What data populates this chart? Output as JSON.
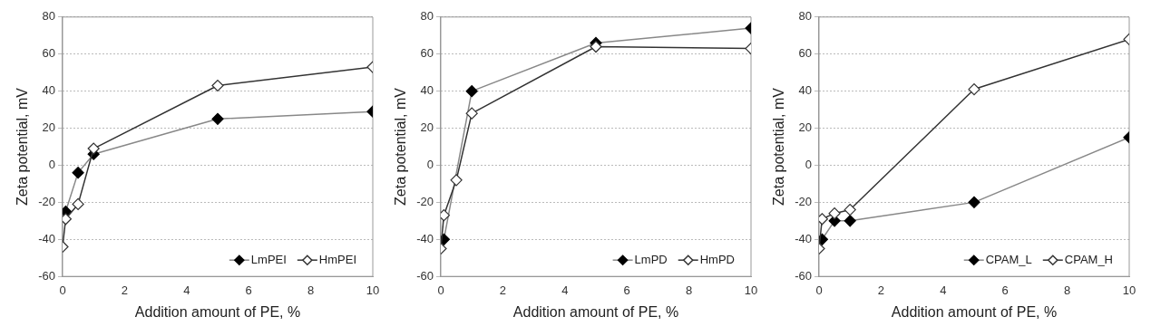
{
  "chart_data": [
    {
      "type": "line",
      "xlabel": "Addition amount of PE, %",
      "ylabel": "Zeta potential, mV",
      "xlim": [
        0,
        10
      ],
      "xticks": [
        0,
        2,
        4,
        6,
        8,
        10
      ],
      "ylim": [
        -60,
        80
      ],
      "yticks": [
        -60,
        -40,
        -20,
        0,
        20,
        40,
        60,
        80
      ],
      "grid": "y",
      "legend": "bottom right",
      "marker": "diamond",
      "x": [
        0,
        0.1,
        0.5,
        1,
        5,
        10
      ],
      "series": [
        {
          "name": "LmPEI",
          "color": "#888888",
          "values": [
            null,
            -25,
            -4,
            6,
            25,
            29
          ]
        },
        {
          "name": "HmPEI",
          "color": "#333333",
          "values": [
            -44,
            -29,
            -21,
            9,
            43,
            53
          ]
        }
      ]
    },
    {
      "type": "line",
      "xlabel": "Addition amount of PE, %",
      "ylabel": "Zeta potential, mV",
      "xlim": [
        0,
        10
      ],
      "xticks": [
        0,
        2,
        4,
        6,
        8,
        10
      ],
      "ylim": [
        -60,
        80
      ],
      "yticks": [
        -60,
        -40,
        -20,
        0,
        20,
        40,
        60,
        80
      ],
      "grid": "y",
      "legend": "bottom right",
      "marker": "diamond",
      "x": [
        0,
        0.1,
        0.5,
        1,
        5,
        10
      ],
      "series": [
        {
          "name": "LmPD",
          "color": "#888888",
          "values": [
            null,
            -40,
            null,
            40,
            66,
            74
          ]
        },
        {
          "name": "HmPD",
          "color": "#333333",
          "values": [
            -45,
            -27,
            -8,
            28,
            64,
            63
          ]
        }
      ]
    },
    {
      "type": "line",
      "xlabel": "Addition amount of PE, %",
      "ylabel": "Zeta potential, mV",
      "xlim": [
        0,
        10
      ],
      "xticks": [
        0,
        2,
        4,
        6,
        8,
        10
      ],
      "ylim": [
        -60,
        80
      ],
      "yticks": [
        -60,
        -40,
        -20,
        0,
        20,
        40,
        60,
        80
      ],
      "grid": "y",
      "legend": "bottom right",
      "marker": "diamond",
      "x": [
        0,
        0.1,
        0.5,
        1,
        5,
        10
      ],
      "series": [
        {
          "name": "CPAM_L",
          "color": "#888888",
          "values": [
            null,
            -40,
            -30,
            -30,
            -20,
            15
          ]
        },
        {
          "name": "CPAM_H",
          "color": "#333333",
          "values": [
            -45,
            -29,
            -26,
            -24,
            41,
            68
          ]
        }
      ]
    }
  ]
}
